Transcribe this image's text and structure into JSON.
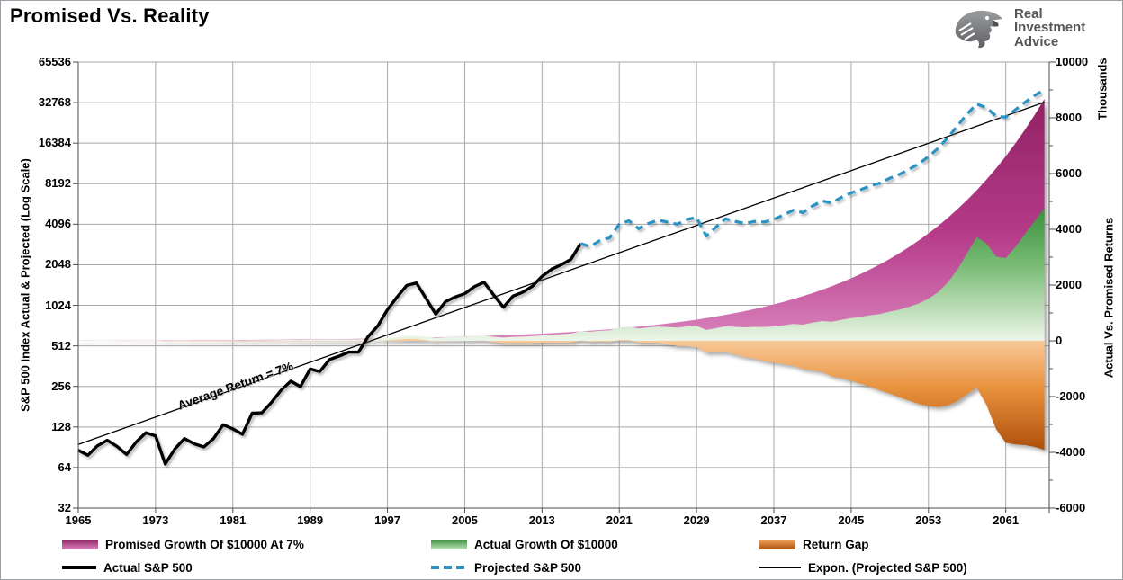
{
  "header": {
    "title": "Promised Vs. Reality",
    "logo": {
      "line1": "Real",
      "line2": "Investment",
      "line3": "Advice"
    }
  },
  "chart_data": {
    "type": "combo",
    "title": "Promised Vs. Reality",
    "x_axis": {
      "ticks": [
        1965,
        1973,
        1981,
        1989,
        1997,
        2005,
        2013,
        2021,
        2029,
        2037,
        2045,
        2053,
        2061
      ],
      "range": [
        1965,
        2065.5
      ]
    },
    "left_axis": {
      "label": "S&P 500 Index Actual & Projected (Log Scale)",
      "scale": "log2",
      "ticks": [
        65536,
        32768,
        16384,
        8192,
        4096,
        2048,
        1024,
        512,
        256,
        128,
        64,
        32
      ],
      "range": [
        32,
        65536
      ]
    },
    "right_axis": {
      "label": "Actual Vs. Promised Returns",
      "units_label": "Thousands",
      "ticks": [
        10000,
        8000,
        6000,
        4000,
        2000,
        0,
        -2000,
        -4000,
        -6000
      ],
      "minor_tick_step": 1000,
      "range": [
        -6000,
        10000
      ]
    },
    "annotation": {
      "text": "Average Return = 7%"
    },
    "legend": {
      "items": [
        {
          "label": "Promised Growth Of $10000 At 7%",
          "swatch": "pink-area"
        },
        {
          "label": "Actual Growth Of $10000",
          "swatch": "green-area"
        },
        {
          "label": "Return Gap",
          "swatch": "orange-area"
        },
        {
          "label": "Actual S&P 500",
          "swatch": "black-thick-line"
        },
        {
          "label": "Projected S&P 500",
          "swatch": "blue-dashed-line"
        },
        {
          "label": "Expon. (Projected S&P 500)",
          "swatch": "black-thin-line"
        }
      ]
    },
    "series_data": {
      "actual_sp500": {
        "name": "Actual S&P 500",
        "axis": "left",
        "start_year": 1965,
        "values": [
          86,
          79,
          93,
          102,
          92,
          80,
          99,
          116,
          110,
          68,
          88,
          105,
          96,
          91,
          105,
          133,
          124,
          113,
          162,
          163,
          195,
          240,
          280,
          255,
          345,
          330,
          405,
          430,
          460,
          460,
          600,
          720,
          950,
          1180,
          1440,
          1500,
          1150,
          880,
          1090,
          1180,
          1250,
          1410,
          1520,
          1220,
          990,
          1200,
          1280,
          1420,
          1680,
          1900,
          2050,
          2250,
          2940
        ]
      },
      "projected_sp500": {
        "name": "Projected S&P 500",
        "axis": "left",
        "start_year": 2017,
        "values": [
          2940,
          2800,
          3100,
          3250,
          4100,
          4350,
          3800,
          4150,
          4400,
          4250,
          4100,
          4450,
          4600,
          3350,
          3900,
          4500,
          4300,
          4150,
          4300,
          4250,
          4450,
          4800,
          5200,
          5000,
          5600,
          6100,
          5900,
          6500,
          7000,
          7400,
          7900,
          8300,
          9000,
          9600,
          10500,
          11500,
          13000,
          15000,
          18000,
          22000,
          27000,
          32000,
          30000,
          26000,
          25500,
          29000,
          33000,
          37000,
          41000
        ]
      },
      "trend": {
        "name": "Expon. (Projected S&P 500)",
        "axis": "left",
        "points": [
          [
            1965,
            95
          ],
          [
            2065,
            33000
          ]
        ],
        "note": "Average Return = 7%"
      },
      "promised": {
        "name": "Promised Growth Of $10000 At 7%",
        "axis": "right",
        "units": "thousands of dollars",
        "start_year": 1965,
        "step": 5,
        "values_thousands": [
          10,
          14.03,
          19.67,
          27.59,
          38.7,
          54.28,
          76.13,
          106.78,
          149.76,
          210.05,
          294.6,
          413.19,
          579.53,
          812.82,
          1140.03,
          1598.95,
          2242.62,
          3145.41,
          4411.56,
          6187.48,
          8678.28
        ]
      },
      "actual_growth": {
        "name": "Actual Growth Of $10000",
        "axis": "right",
        "units": "thousands of dollars",
        "formula": "sp500_value * 10 / 86",
        "end_value_thousands": 4767
      },
      "return_gap": {
        "name": "Return Gap",
        "axis": "right",
        "units": "thousands of dollars",
        "formula": "actual_growth - promised_growth",
        "end_value_thousands": -3911
      }
    },
    "colors": {
      "promised_dark": "#8f2364",
      "promised_light": "#d983bd",
      "green_dark": "#39903d",
      "green_light": "#edf6e9",
      "orange_light": "#f9cb9c",
      "orange_dark": "#ad4f0c",
      "projected_line": "#2b93c4",
      "actual_line": "#000000",
      "trend_line": "#000000",
      "grid": "#a8a8a8",
      "logo_gray": "#6d6f72",
      "logo_text": "#54565a"
    }
  }
}
